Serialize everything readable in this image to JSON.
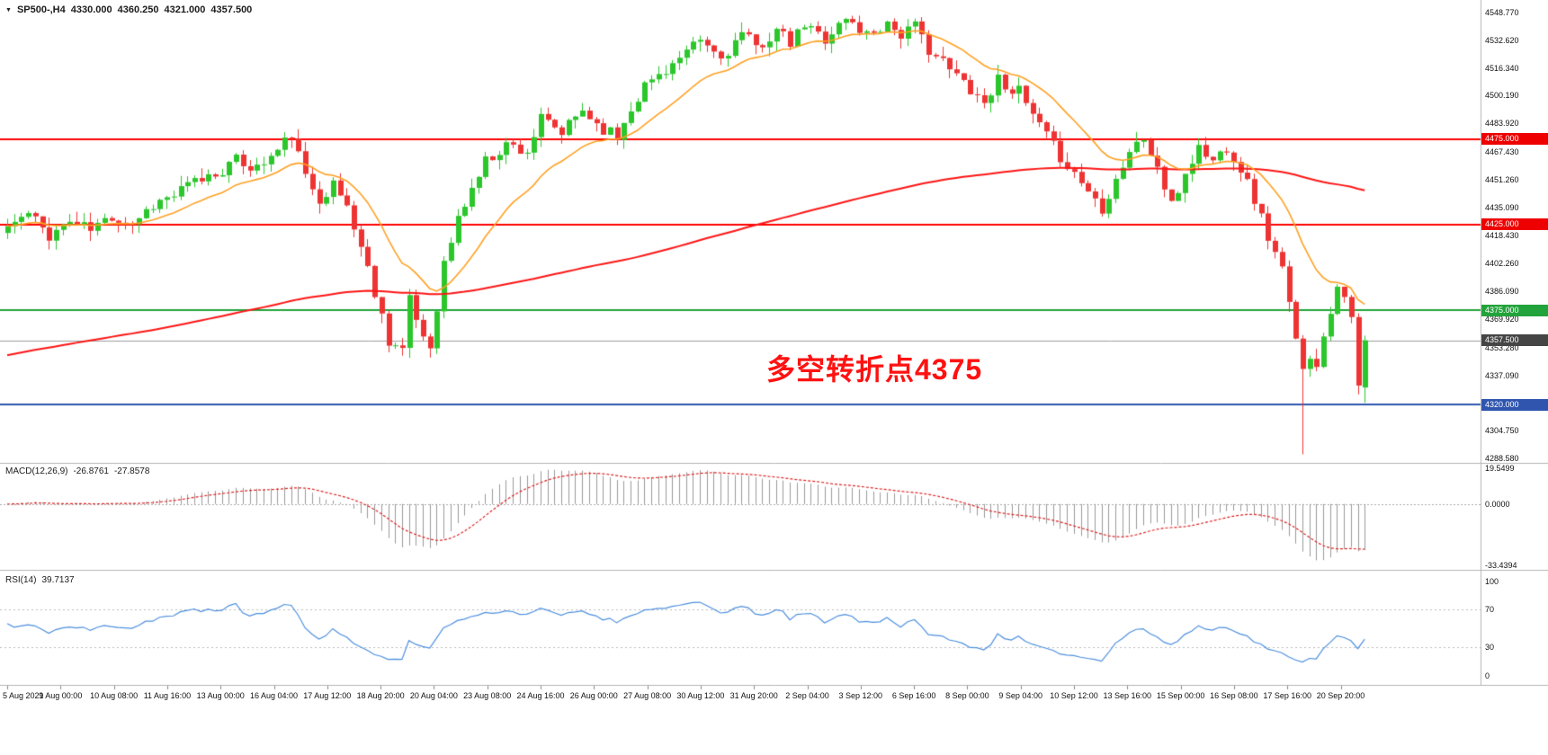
{
  "title_bar": {
    "symbol_period": "SP500-,H4",
    "open": "4330.000",
    "high": "4360.250",
    "low": "4321.000",
    "close": "4357.500"
  },
  "annotation": {
    "text": "多空转折点4375",
    "color": "#ff1111"
  },
  "chart_data": {
    "type": "candlestick",
    "symbol": "SP500-",
    "timeframe": "H4",
    "ohlc_current": {
      "open": 4330.0,
      "high": 4360.25,
      "low": 4321.0,
      "close": 4357.5
    },
    "ylim": [
      4286,
      4556
    ],
    "bar_count": 197,
    "seed": 11,
    "noise_amp": 8,
    "wick_amp": 6,
    "up_color": "#2bc62b",
    "down_color": "#ee3333",
    "close_anchors": [
      [
        0,
        4424
      ],
      [
        3,
        4431
      ],
      [
        6,
        4419
      ],
      [
        9,
        4427
      ],
      [
        12,
        4422
      ],
      [
        15,
        4430
      ],
      [
        18,
        4426
      ],
      [
        21,
        4437
      ],
      [
        24,
        4442
      ],
      [
        27,
        4450
      ],
      [
        30,
        4455
      ],
      [
        33,
        4462
      ],
      [
        36,
        4458
      ],
      [
        39,
        4468
      ],
      [
        41,
        4478
      ],
      [
        43,
        4452
      ],
      [
        45,
        4441
      ],
      [
        47,
        4448
      ],
      [
        49,
        4436
      ],
      [
        51,
        4412
      ],
      [
        53,
        4386
      ],
      [
        55,
        4358
      ],
      [
        57,
        4352
      ],
      [
        58,
        4380
      ],
      [
        60,
        4360
      ],
      [
        61,
        4354
      ],
      [
        63,
        4402
      ],
      [
        65,
        4428
      ],
      [
        67,
        4446
      ],
      [
        69,
        4462
      ],
      [
        72,
        4472
      ],
      [
        75,
        4468
      ],
      [
        77,
        4486
      ],
      [
        80,
        4478
      ],
      [
        83,
        4492
      ],
      [
        85,
        4484
      ],
      [
        88,
        4476
      ],
      [
        90,
        4494
      ],
      [
        92,
        4506
      ],
      [
        95,
        4516
      ],
      [
        98,
        4524
      ],
      [
        100,
        4532
      ],
      [
        103,
        4522
      ],
      [
        106,
        4536
      ],
      [
        108,
        4528
      ],
      [
        111,
        4538
      ],
      [
        113,
        4530
      ],
      [
        115,
        4541
      ],
      [
        118,
        4534
      ],
      [
        121,
        4545
      ],
      [
        124,
        4536
      ],
      [
        127,
        4543
      ],
      [
        129,
        4536
      ],
      [
        131,
        4540
      ],
      [
        133,
        4528
      ],
      [
        136,
        4515
      ],
      [
        139,
        4505
      ],
      [
        141,
        4496
      ],
      [
        143,
        4510
      ],
      [
        146,
        4502
      ],
      [
        148,
        4488
      ],
      [
        151,
        4470
      ],
      [
        154,
        4455
      ],
      [
        156,
        4445
      ],
      [
        158,
        4435
      ],
      [
        160,
        4452
      ],
      [
        162,
        4468
      ],
      [
        164,
        4475
      ],
      [
        166,
        4458
      ],
      [
        168,
        4435
      ],
      [
        170,
        4455
      ],
      [
        172,
        4470
      ],
      [
        174,
        4462
      ],
      [
        176,
        4471
      ],
      [
        178,
        4458
      ],
      [
        180,
        4440
      ],
      [
        182,
        4418
      ],
      [
        184,
        4398
      ],
      [
        185,
        4378
      ],
      [
        186,
        4356
      ],
      [
        187,
        4344
      ],
      [
        188,
        4350
      ],
      [
        189,
        4340
      ],
      [
        190,
        4362
      ],
      [
        191,
        4376
      ],
      [
        192,
        4390
      ],
      [
        193,
        4386
      ],
      [
        194,
        4368
      ],
      [
        195,
        4330
      ],
      [
        196,
        4357.5
      ]
    ],
    "spike": {
      "index": 187,
      "low": 4291
    },
    "last_bar": {
      "open": 4330.0,
      "high": 4360.25,
      "low": 4321.0,
      "close": 4357.5
    },
    "ma_fast": {
      "type": "EMA",
      "period": 16,
      "color": "#ffa022"
    },
    "ma_slow": {
      "type": "EMA",
      "period": 200,
      "seed_value": 4348,
      "color": "#ff1515"
    },
    "hlines": [
      {
        "price": 4475.0,
        "label": "4475.000",
        "line_color": "#ff0000",
        "badge_color": "#ee0000",
        "width": 2
      },
      {
        "price": 4425.0,
        "label": "4425.000",
        "line_color": "#ff0000",
        "badge_color": "#ee0000",
        "width": 2
      },
      {
        "price": 4375.0,
        "label": "4375.000",
        "line_color": "#23a33b",
        "badge_color": "#23a33b",
        "width": 2
      },
      {
        "price": 4357.5,
        "label": "4357.500",
        "line_color": "#9c9c9c",
        "badge_color": "#454545",
        "width": 1
      },
      {
        "price": 4320.0,
        "label": "4320.000",
        "line_color": "#2f55af",
        "badge_color": "#2f55af",
        "width": 2
      }
    ],
    "price_ticks": [
      {
        "label": "4548.770",
        "value": 4548.77
      },
      {
        "label": "4532.620",
        "value": 4532.62
      },
      {
        "label": "4516.340",
        "value": 4516.34
      },
      {
        "label": "4500.190",
        "value": 4500.19
      },
      {
        "label": "4483.920",
        "value": 4483.92
      },
      {
        "label": "4467.430",
        "value": 4467.43
      },
      {
        "label": "4451.260",
        "value": 4451.26
      },
      {
        "label": "4435.090",
        "value": 4435.09
      },
      {
        "label": "4418.430",
        "value": 4418.43
      },
      {
        "label": "4402.260",
        "value": 4402.26
      },
      {
        "label": "4386.090",
        "value": 4386.09
      },
      {
        "label": "4369.920",
        "value": 4369.92
      },
      {
        "label": "4353.280",
        "value": 4353.28
      },
      {
        "label": "4337.090",
        "value": 4337.09
      },
      {
        "label": "4304.750",
        "value": 4304.75
      },
      {
        "label": "4288.580",
        "value": 4288.58
      }
    ],
    "x_labels": [
      "5 Aug 2021",
      "9 Aug 00:00",
      "10 Aug 08:00",
      "11 Aug 16:00",
      "13 Aug 00:00",
      "16 Aug 04:00",
      "17 Aug 12:00",
      "18 Aug 20:00",
      "20 Aug 04:00",
      "23 Aug 08:00",
      "24 Aug 16:00",
      "26 Aug 00:00",
      "27 Aug 08:00",
      "30 Aug 12:00",
      "31 Aug 20:00",
      "2 Sep 04:00",
      "3 Sep 12:00",
      "6 Sep 16:00",
      "8 Sep 00:00",
      "9 Sep 04:00",
      "10 Sep 12:00",
      "13 Sep 16:00",
      "15 Sep 00:00",
      "16 Sep 08:00",
      "17 Sep 16:00",
      "20 Sep 20:00"
    ],
    "macd": {
      "label": "MACD(12,26,9)",
      "main": "-26.8761",
      "signal": "-27.8578",
      "fast_period": 12,
      "slow_period": 26,
      "signal_period": 9,
      "range": [
        -36,
        22
      ],
      "hist_color": "#9a9a9a",
      "signal_color": "#dd2222",
      "ticks": [
        {
          "label": "19.5499",
          "value": 19.5499
        },
        {
          "label": "0.0000",
          "value": 0
        },
        {
          "label": "-33.4394",
          "value": -33.4394
        }
      ]
    },
    "rsi": {
      "label": "RSI(14)",
      "value": "39.7137",
      "period": 14,
      "range": [
        -10,
        110
      ],
      "levels": [
        70,
        30
      ],
      "line_color": "#4d8fde",
      "ticks": [
        {
          "label": "100",
          "value": 100
        },
        {
          "label": "70",
          "value": 70
        },
        {
          "label": "30",
          "value": 30
        },
        {
          "label": "0",
          "value": 0
        }
      ]
    }
  }
}
